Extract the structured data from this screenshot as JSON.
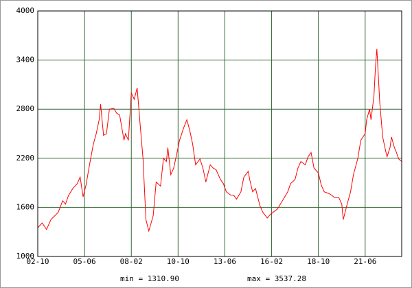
{
  "chart_data": {
    "type": "line",
    "x": [
      "02-10",
      "03-01",
      "03-04",
      "03-07",
      "03-12",
      "04-03",
      "04-05",
      "04-07",
      "04-10",
      "05-01",
      "05-03",
      "05-05",
      "05-07",
      "05-09",
      "05-12",
      "06-02",
      "06-04",
      "06-05",
      "06-07",
      "06-09",
      "06-11",
      "07-02",
      "07-04",
      "07-06",
      "07-09",
      "07-10",
      "07-12",
      "08-02",
      "08-04",
      "08-06",
      "08-08",
      "08-10",
      "08-12",
      "09-02",
      "09-05",
      "09-07",
      "09-10",
      "09-12",
      "10-02",
      "10-03",
      "10-05",
      "10-07",
      "10-10",
      "10-11",
      "11-02",
      "11-04",
      "11-06",
      "11-08",
      "11-10",
      "12-01",
      "12-03",
      "12-05",
      "12-08",
      "12-10",
      "12-12",
      "13-03",
      "13-05",
      "13-07",
      "13-10",
      "13-12",
      "14-02",
      "14-05",
      "14-07",
      "14-10",
      "14-11",
      "15-01",
      "15-03",
      "15-06",
      "15-08",
      "15-11",
      "16-01",
      "16-03",
      "16-06",
      "16-08",
      "16-10",
      "17-01",
      "17-03",
      "17-06",
      "17-08",
      "17-10",
      "18-01",
      "18-03",
      "18-05",
      "18-07",
      "18-10",
      "18-12",
      "19-02",
      "19-05",
      "19-07",
      "19-09",
      "19-12",
      "20-02",
      "20-03",
      "20-06",
      "20-08",
      "20-10",
      "21-01",
      "21-03",
      "21-06",
      "21-07",
      "21-09",
      "21-10",
      "21-12",
      "22-01",
      "22-02",
      "22-04",
      "22-06",
      "22-08",
      "22-09",
      "22-11",
      "22-12",
      "23-02",
      "23-03",
      "23-05",
      "23-07"
    ],
    "series": [
      {
        "color": "#ff0000",
        "values": [
          1350,
          1410,
          1330,
          1450,
          1540,
          1680,
          1640,
          1745,
          1830,
          1890,
          1970,
          1730,
          1870,
          2080,
          2370,
          2500,
          2670,
          2860,
          2480,
          2500,
          2800,
          2810,
          2750,
          2730,
          2420,
          2500,
          2420,
          3000,
          2920,
          3060,
          2620,
          2200,
          1450,
          1311,
          1500,
          1910,
          1860,
          2200,
          2160,
          2330,
          2000,
          2080,
          2330,
          2420,
          2580,
          2670,
          2540,
          2370,
          2120,
          2190,
          2080,
          1910,
          2120,
          2080,
          2060,
          1940,
          1890,
          1790,
          1750,
          1750,
          1700,
          1790,
          1970,
          2040,
          1940,
          1790,
          1830,
          1620,
          1540,
          1470,
          1510,
          1540,
          1580,
          1640,
          1700,
          1790,
          1890,
          1940,
          2080,
          2160,
          2120,
          2220,
          2270,
          2080,
          2020,
          1870,
          1790,
          1770,
          1750,
          1720,
          1720,
          1640,
          1450,
          1660,
          1790,
          2000,
          2200,
          2420,
          2500,
          2670,
          2800,
          2670,
          2960,
          3300,
          3537,
          2880,
          2460,
          2290,
          2220,
          2330,
          2460,
          2330,
          2290,
          2190,
          2160
        ]
      }
    ],
    "xlim": [
      "02-10",
      "23-07"
    ],
    "xticks": [
      "02-10",
      "05-06",
      "08-02",
      "10-10",
      "13-06",
      "16-02",
      "18-10",
      "21-06"
    ],
    "ylim": [
      1000,
      4000
    ],
    "yticks": [
      1000,
      1600,
      2200,
      2800,
      3400,
      4000
    ],
    "grid": true,
    "grid_color": "#336633",
    "annotations": [
      "min = 1310.90",
      "max = 3537.28"
    ]
  }
}
